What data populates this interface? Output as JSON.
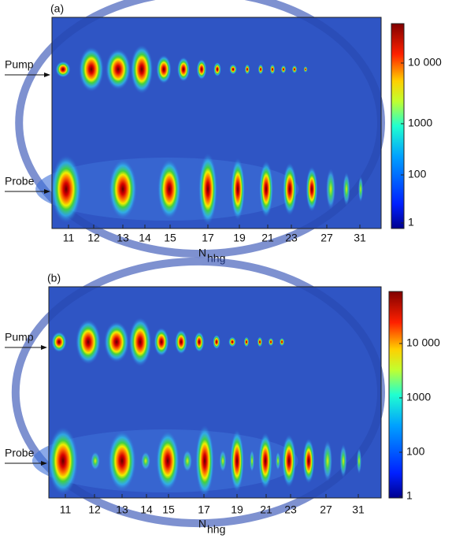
{
  "panels": [
    {
      "label": "(a)",
      "rows": [
        "Pump",
        "Probe"
      ],
      "x_ticks": [
        "11",
        "12",
        "13",
        "14",
        "15",
        "17",
        "19",
        "21",
        "23",
        "27",
        "31"
      ],
      "x_label": {
        "main": "N",
        "sub": "hhg"
      },
      "colorbar_ticks": [
        "10 000",
        "1000",
        "100",
        "1"
      ]
    },
    {
      "label": "(b)",
      "rows": [
        "Pump",
        "Probe"
      ],
      "x_ticks": [
        "11",
        "12",
        "13",
        "14",
        "15",
        "17",
        "19",
        "21",
        "23",
        "27",
        "31"
      ],
      "x_label": {
        "main": "N",
        "sub": "hhg"
      },
      "colorbar_ticks": [
        "10 000",
        "1000",
        "100",
        "1"
      ]
    }
  ]
}
